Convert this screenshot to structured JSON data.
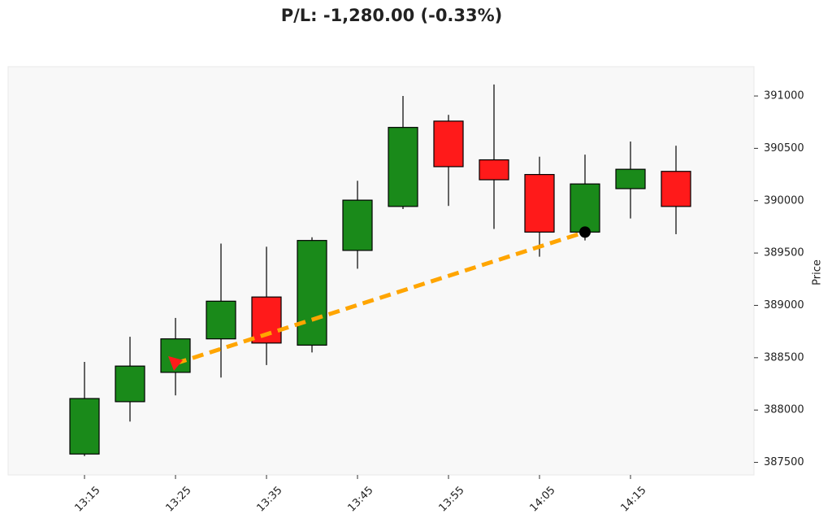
{
  "chart_data": {
    "type": "candlestick",
    "title": "P/L: -1,280.00 (-0.33%)",
    "y_label": "Price",
    "categories": [
      "13:15",
      null,
      "13:25",
      null,
      "13:35",
      null,
      "13:45",
      null,
      "13:55",
      null,
      "14:05",
      null,
      "14:15",
      null
    ],
    "open": [
      387580,
      388080,
      388360,
      388680,
      389080,
      388620,
      389525,
      389945,
      390760,
      390390,
      390250,
      389700,
      390115,
      390280
    ],
    "high": [
      388460,
      388700,
      388880,
      389590,
      389560,
      389650,
      390190,
      391000,
      390820,
      391110,
      390420,
      390440,
      390565,
      390525
    ],
    "low": [
      387560,
      387890,
      388140,
      388310,
      388430,
      388550,
      389350,
      389920,
      389950,
      389730,
      389465,
      389620,
      389830,
      389680
    ],
    "close": [
      388110,
      388420,
      388680,
      389040,
      388640,
      389620,
      390005,
      390700,
      390325,
      390200,
      389700,
      390160,
      390300,
      389945
    ],
    "up_color": "#1a8a1a",
    "down_color": "#ff1a1a",
    "ylim": [
      387380,
      391280
    ],
    "yticks": [
      387500,
      388000,
      388500,
      389000,
      389500,
      390000,
      390500,
      391000
    ],
    "trade": {
      "entry": {
        "x": 2,
        "y": 388445,
        "color": "#ff1a1a"
      },
      "exit": {
        "x": 11,
        "y": 389700,
        "color": "#000000"
      },
      "line_color": "#ffa500"
    }
  }
}
